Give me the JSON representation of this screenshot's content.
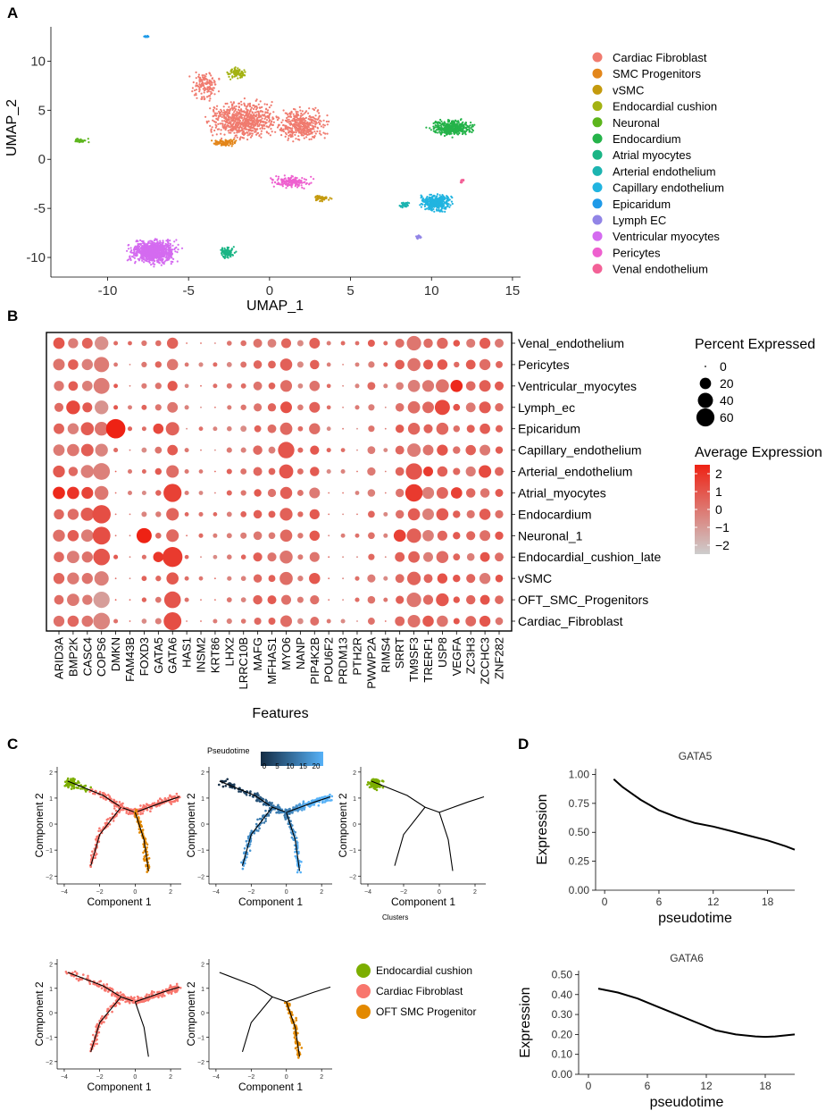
{
  "panels": {
    "a": "A",
    "b": "B",
    "c": "C",
    "d": "D"
  },
  "colors": {
    "Cardiac Fibroblast": "#f07b6f",
    "SMC Progenitors": "#e3861a",
    "vSMC": "#c49a0d",
    "Endocardial cushion": "#a3b212",
    "Neuronal": "#5cb51c",
    "Endocardium": "#25b34a",
    "Atrial myocytes": "#1ab585",
    "Arterial endothelium": "#1cb4b0",
    "Capillary endothelium": "#21b4e0",
    "Epicaridum": "#1f9ae8",
    "Lymph EC": "#9184e6",
    "Ventricular myocytes": "#d46bf0",
    "Pericytes": "#ee60cf",
    "Venal endothelium": "#f36197"
  },
  "chart_data": [
    {
      "id": "umap",
      "type": "scatter",
      "xlabel": "UMAP_1",
      "ylabel": "UMAP_2",
      "xlim": [
        -13.5,
        15.5
      ],
      "ylim": [
        -12,
        13.5
      ],
      "xticks": [
        "-10",
        "-5",
        "0",
        "5",
        "10",
        "15"
      ],
      "yticks": [
        "-10",
        "-5",
        "0",
        "5",
        "10"
      ],
      "legend": [
        "Cardiac Fibroblast",
        "SMC Progenitors",
        "vSMC",
        "Endocardial cushion",
        "Neuronal",
        "Endocardium",
        "Atrial myocytes",
        "Arterial endothelium",
        "Capillary endothelium",
        "Epicaridum",
        "Lymph EC",
        "Ventricular myocytes",
        "Pericytes",
        "Venal endothelium"
      ],
      "clusters": [
        {
          "name": "Cardiac Fibroblast",
          "cx": -1.5,
          "cy": 4.0,
          "sx": 2.6,
          "sy": 2.4,
          "n": 700
        },
        {
          "name": "Cardiac Fibroblast",
          "cx": 2.0,
          "cy": 3.5,
          "sx": 1.9,
          "sy": 2.0,
          "n": 380
        },
        {
          "name": "Cardiac Fibroblast",
          "cx": -4.0,
          "cy": 7.5,
          "sx": 1.1,
          "sy": 1.8,
          "n": 130
        },
        {
          "name": "SMC Progenitors",
          "cx": -2.8,
          "cy": 1.7,
          "sx": 1.0,
          "sy": 0.5,
          "n": 90
        },
        {
          "name": "vSMC",
          "cx": 3.2,
          "cy": -4.0,
          "sx": 0.8,
          "sy": 0.4,
          "n": 50
        },
        {
          "name": "Endocardial cushion",
          "cx": -2.0,
          "cy": 8.8,
          "sx": 0.8,
          "sy": 0.7,
          "n": 90
        },
        {
          "name": "Neuronal",
          "cx": -11.6,
          "cy": 1.9,
          "sx": 0.5,
          "sy": 0.3,
          "n": 30
        },
        {
          "name": "Endocardium",
          "cx": 11.3,
          "cy": 3.2,
          "sx": 1.6,
          "sy": 1.0,
          "n": 380
        },
        {
          "name": "Atrial myocytes",
          "cx": -2.6,
          "cy": -9.5,
          "sx": 0.6,
          "sy": 0.7,
          "n": 100
        },
        {
          "name": "Arterial endothelium",
          "cx": 8.3,
          "cy": -4.6,
          "sx": 0.5,
          "sy": 0.5,
          "n": 30
        },
        {
          "name": "Capillary endothelium",
          "cx": 10.3,
          "cy": -4.4,
          "sx": 1.2,
          "sy": 1.1,
          "n": 330
        },
        {
          "name": "Epicaridum",
          "cx": -7.6,
          "cy": 12.5,
          "sx": 0.3,
          "sy": 0.1,
          "n": 14
        },
        {
          "name": "Lymph EC",
          "cx": 9.2,
          "cy": -7.9,
          "sx": 0.3,
          "sy": 0.3,
          "n": 16
        },
        {
          "name": "Ventricular myocytes",
          "cx": -7.2,
          "cy": -9.4,
          "sx": 1.9,
          "sy": 1.5,
          "n": 760
        },
        {
          "name": "Pericytes",
          "cx": 1.4,
          "cy": -2.3,
          "sx": 1.5,
          "sy": 0.8,
          "n": 160
        },
        {
          "name": "Venal endothelium",
          "cx": 11.9,
          "cy": -2.2,
          "sx": 0.2,
          "sy": 0.3,
          "n": 12
        }
      ]
    },
    {
      "id": "dotplot",
      "type": "scatter",
      "xlabel": "Features",
      "genes": [
        "ARID3A",
        "BMP2K",
        "CASC4",
        "COPS6",
        "DMKN",
        "FAM43B",
        "FOXD3",
        "GATA5",
        "GATA6",
        "HAS1",
        "INSM2",
        "KRT86",
        "LHX2",
        "LRRC10B",
        "MAFG",
        "MFHAS1",
        "MYO6",
        "NANP",
        "PIP4K2B",
        "POU6F2",
        "PRDM13",
        "PTH2R",
        "PWWP2A",
        "RIMS4",
        "SRRT",
        "TM9SF3",
        "TRERF1",
        "USP8",
        "VEGFA",
        "ZC3H3",
        "ZCCHC3",
        "ZNF282"
      ],
      "cells": [
        "Venal_endothelium",
        "Pericytes",
        "Ventricular_myocytes",
        "Lymph_ec",
        "Epicaridum",
        "Capillary_endothelium",
        "Arterial_endothelium",
        "Atrial_myocytes",
        "Endocardium",
        "Neuronal_1",
        "Endocardial_cushion_late",
        "vSMC",
        "OFT_SMC_Progenitors",
        "Cardiac_Fibroblast"
      ],
      "base_pct": [
        18,
        18,
        22,
        42,
        1,
        1,
        2,
        4,
        20,
        1,
        1,
        1,
        2,
        3,
        9,
        8,
        22,
        3,
        14,
        1,
        1,
        1,
        7,
        1,
        10,
        30,
        16,
        24,
        5,
        12,
        16,
        8
      ],
      "base_expr": [
        0.5,
        0.3,
        0.3,
        -0.5,
        0.5,
        0,
        0,
        0.3,
        0.5,
        0,
        0,
        0,
        0,
        0,
        0.3,
        0.3,
        0.6,
        0,
        0.5,
        0,
        0,
        0,
        0.3,
        0,
        0.3,
        0.3,
        0.3,
        0.6,
        0.5,
        0.3,
        0.5,
        0.5
      ],
      "overrides": [
        {
          "cell": "Epicaridum",
          "gene": "DMKN",
          "pct": 70,
          "expr": 2.5
        },
        {
          "cell": "Lymph_ec",
          "gene": "BMP2K",
          "pct": 32,
          "expr": 1.4
        },
        {
          "cell": "Lymph_ec",
          "gene": "USP8",
          "pct": 40,
          "expr": 1.4
        },
        {
          "cell": "Ventricular_myocytes",
          "gene": "VEGFA",
          "pct": 24,
          "expr": 2.3
        },
        {
          "cell": "Capillary_endothelium",
          "gene": "MYO6",
          "pct": 48,
          "expr": 1.0
        },
        {
          "cell": "Atrial_myocytes",
          "gene": "ARID3A",
          "pct": 24,
          "expr": 2.3
        },
        {
          "cell": "Atrial_myocytes",
          "gene": "BMP2K",
          "pct": 24,
          "expr": 2.0
        },
        {
          "cell": "Atrial_myocytes",
          "gene": "CASC4",
          "pct": 22,
          "expr": 1.5
        },
        {
          "cell": "Atrial_myocytes",
          "gene": "GATA6",
          "pct": 60,
          "expr": 1.6
        },
        {
          "cell": "Atrial_myocytes",
          "gene": "TM9SF3",
          "pct": 55,
          "expr": 1.8
        },
        {
          "cell": "Atrial_myocytes",
          "gene": "VEGFA",
          "pct": 20,
          "expr": 1.6
        },
        {
          "cell": "Endocardium",
          "gene": "COPS6",
          "pct": 62,
          "expr": 1.2
        },
        {
          "cell": "Neuronal_1",
          "gene": "COPS6",
          "pct": 58,
          "expr": 1.2
        },
        {
          "cell": "Neuronal_1",
          "gene": "FOXD3",
          "pct": 40,
          "expr": 2.6
        },
        {
          "cell": "Neuronal_1",
          "gene": "SRRT",
          "pct": 24,
          "expr": 1.6
        },
        {
          "cell": "Endocardial_cushion_late",
          "gene": "GATA6",
          "pct": 75,
          "expr": 1.8
        },
        {
          "cell": "Endocardial_cushion_late",
          "gene": "GATA5",
          "pct": 16,
          "expr": 1.9
        },
        {
          "cell": "Endocardial_cushion_late",
          "gene": "COPS6",
          "pct": 50,
          "expr": 1.0
        },
        {
          "cell": "OFT_SMC_Progenitors",
          "gene": "GATA6",
          "pct": 50,
          "expr": 1.0
        },
        {
          "cell": "Cardiac_Fibroblast",
          "gene": "GATA6",
          "pct": 58,
          "expr": 1.2
        },
        {
          "cell": "Arterial_endothelium",
          "gene": "MYO6",
          "pct": 34,
          "expr": 1.0
        },
        {
          "cell": "Arterial_endothelium",
          "gene": "TM9SF3",
          "pct": 48,
          "expr": 1.0
        },
        {
          "cell": "Arterial_endothelium",
          "gene": "TRERF1",
          "pct": 14,
          "expr": 1.8
        },
        {
          "cell": "Arterial_endothelium",
          "gene": "ZCCHC3",
          "pct": 26,
          "expr": 1.3
        },
        {
          "cell": "Epicaridum",
          "gene": "GATA5",
          "pct": 16,
          "expr": 1.4
        },
        {
          "cell": "Epicaridum",
          "gene": "GATA6",
          "pct": 30,
          "expr": 0.6
        },
        {
          "cell": "Epicaridum",
          "gene": "CASC4",
          "pct": 28,
          "expr": 0.8
        }
      ],
      "size_legend_title": "Percent Expressed",
      "size_legend": [
        0,
        20,
        40,
        60
      ],
      "color_legend_title": "Average Expression",
      "color_range": [
        -2.5,
        2.5
      ],
      "color_ticks": [
        2,
        1,
        0,
        -1,
        -2
      ],
      "color_tick_labels": [
        "2",
        "1",
        "0",
        "−1",
        "−2"
      ]
    },
    {
      "id": "trajectory",
      "type": "scatter",
      "xlabel": "Component 1",
      "ylabel": "Component 2",
      "pseudotime_title": "Pseudotime",
      "pseudotime_ticks": [
        "0",
        "5",
        "10",
        "15",
        "20"
      ],
      "clusters_label": "Clusters",
      "legend": [
        "Endocardial cushion",
        "Cardiac Fibroblast",
        "OFT SMC Progenitor"
      ],
      "legend_colors": [
        "#7cae00",
        "#f8766d",
        "#e38900"
      ]
    },
    {
      "id": "gata5",
      "type": "line",
      "title": "GATA5",
      "xlabel": "pseudotime",
      "ylabel": "Expression",
      "xlim": [
        -1,
        21
      ],
      "ylim": [
        0.0,
        1.05
      ],
      "xticks": [
        0,
        6,
        12,
        18
      ],
      "yticks": [
        0.0,
        0.25,
        0.5,
        0.75,
        1.0
      ],
      "ytick_labels": [
        "0.00",
        "0.25",
        "0.50",
        "0.75",
        "1.00"
      ],
      "x": [
        1,
        2,
        4,
        6,
        8,
        10,
        12,
        14,
        16,
        18,
        20,
        21
      ],
      "y": [
        0.96,
        0.89,
        0.78,
        0.69,
        0.63,
        0.58,
        0.55,
        0.51,
        0.47,
        0.43,
        0.38,
        0.35
      ]
    },
    {
      "id": "gata6",
      "type": "line",
      "title": "GATA6",
      "xlabel": "pseudotime",
      "ylabel": "Expression",
      "xlim": [
        -1,
        21
      ],
      "ylim": [
        0.0,
        0.52
      ],
      "xticks": [
        0,
        6,
        12,
        18
      ],
      "yticks": [
        0.0,
        0.1,
        0.2,
        0.3,
        0.4,
        0.5
      ],
      "ytick_labels": [
        "0.00",
        "0.10",
        "0.20",
        "0.30",
        "0.40",
        "0.50"
      ],
      "x": [
        1,
        3,
        5,
        7,
        9,
        11,
        13,
        15,
        17,
        18,
        19,
        21
      ],
      "y": [
        0.43,
        0.41,
        0.38,
        0.34,
        0.3,
        0.26,
        0.22,
        0.2,
        0.19,
        0.188,
        0.19,
        0.2
      ]
    }
  ]
}
